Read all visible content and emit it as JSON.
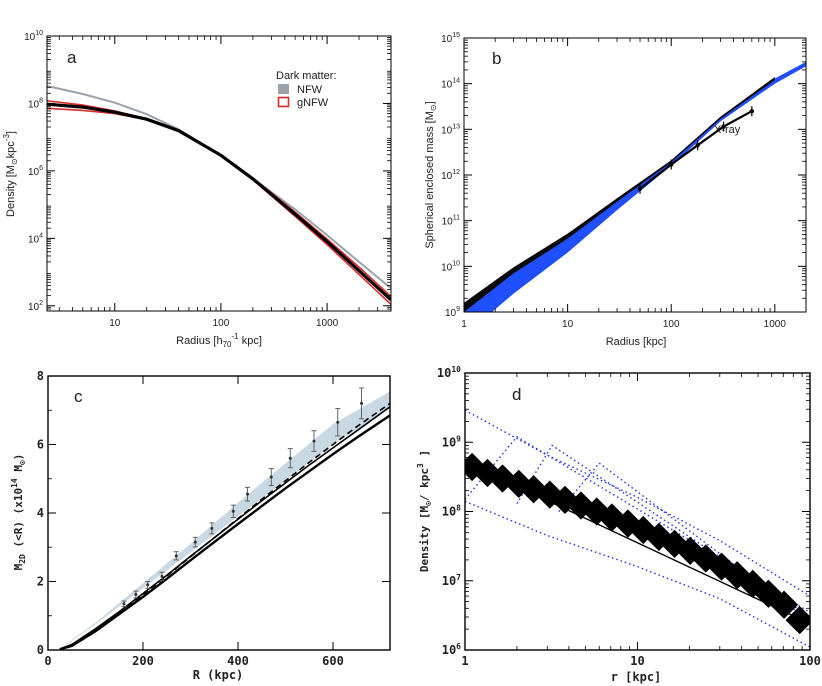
{
  "figure_title": "Four-panel figure: dark matter density and mass profiles",
  "chart_data": [
    {
      "panel": "a",
      "type": "line",
      "xscale": "log",
      "yscale": "log",
      "xlim": [
        2.3,
        4000
      ],
      "ylim": [
        70,
        10000000000
      ],
      "xlabel_main": "Radius [h",
      "xlabel_sub": "70",
      "xlabel_sup": "-1",
      "xlabel_tail": " kpc]",
      "ylabel_main": "Density [M",
      "ylabel_sub": "⊙",
      "ylabel_mid": "kpc",
      "ylabel_sup": "-3",
      "ylabel_tail": "]",
      "xticks": [
        {
          "v": 10,
          "label": "10"
        },
        {
          "v": 100,
          "label": "100"
        },
        {
          "v": 1000,
          "label": "1000"
        }
      ],
      "yticks": [
        {
          "v": 100,
          "b": "10",
          "e": "2"
        },
        {
          "v": 10000,
          "b": "10",
          "e": "4"
        },
        {
          "v": 1000000,
          "b": "10",
          "e": "6"
        },
        {
          "v": 100000000,
          "b": "10",
          "e": "8"
        },
        {
          "v": 10000000000,
          "b": "10",
          "e": "10"
        }
      ],
      "legend_title": "Dark matter:",
      "series": [
        {
          "name": "NFW",
          "color": "#9aa3ab",
          "x": [
            2.3,
            5,
            10,
            20,
            40,
            100,
            200,
            500,
            1000,
            2000,
            4000
          ],
          "y": [
            330000000,
            190000000,
            105000000,
            48000000,
            17000000,
            2800000,
            600000,
            72000,
            12500,
            2000,
            330
          ]
        },
        {
          "name": "gNFW",
          "color": "#dd2b2b",
          "x": [
            2.3,
            5,
            10,
            20,
            40,
            100,
            200,
            500,
            1000,
            2000,
            4000
          ],
          "y": [
            72000000,
            62000000,
            50000000,
            33000000,
            15000000,
            2800000,
            540000,
            45000,
            6500,
            850,
            110
          ]
        },
        {
          "name": "",
          "color": "#dd2b2b",
          "x": [
            2.3,
            5,
            10,
            20,
            40,
            100,
            200,
            500,
            1000,
            2000,
            4000
          ],
          "y": [
            120000000,
            90000000,
            60000000,
            35000000,
            16000000,
            3000000,
            620000,
            60000,
            9500,
            1400,
            190
          ]
        },
        {
          "name": "",
          "color": "#000000",
          "x": [
            2.3,
            5,
            10,
            20,
            40,
            100,
            200,
            500,
            1000,
            2000,
            4000
          ],
          "y": [
            95000000,
            78000000,
            55000000,
            34000000,
            15500000,
            2900000,
            580000,
            52000,
            8000,
            1100,
            150
          ]
        }
      ]
    },
    {
      "panel": "b",
      "type": "area",
      "xscale": "log",
      "yscale": "log",
      "xlim": [
        1,
        2000
      ],
      "ylim": [
        1000000000,
        1000000000000000
      ],
      "xlabel": "Radius [kpc]",
      "ylabel_main": "Spherical enclosed mass [M",
      "ylabel_sub": "⊙",
      "ylabel_tail": "]",
      "xticks": [
        {
          "v": 1,
          "label": "1"
        },
        {
          "v": 10,
          "label": "10"
        },
        {
          "v": 100,
          "label": "100"
        },
        {
          "v": 1000,
          "label": "1000"
        }
      ],
      "yticks": [
        {
          "v": 1000000000,
          "b": "10",
          "e": "9"
        },
        {
          "v": 10000000000,
          "b": "10",
          "e": "10"
        },
        {
          "v": 100000000000,
          "b": "10",
          "e": "11"
        },
        {
          "v": 1000000000000,
          "b": "10",
          "e": "12"
        },
        {
          "v": 10000000000000,
          "b": "10",
          "e": "13"
        },
        {
          "v": 100000000000000,
          "b": "10",
          "e": "14"
        },
        {
          "v": 1000000000000000,
          "b": "10",
          "e": "15"
        }
      ],
      "annotation": "X-ray",
      "blue_band": {
        "x": [
          1,
          3,
          10,
          30,
          100,
          300,
          1000,
          2000
        ],
        "lower": [
          300000000,
          2500000000,
          20000000000,
          170000000000,
          1600000000000,
          15000000000000,
          100000000000000,
          240000000000000
        ],
        "upper": [
          1200000000,
          7500000000,
          40000000000,
          280000000000,
          2000000000000,
          18000000000000,
          130000000000000,
          300000000000000
        ]
      },
      "black_band": {
        "x": [
          1,
          3,
          10,
          30,
          100,
          300,
          1000
        ],
        "lower": [
          1000000000,
          7000000000,
          40000000000,
          260000000000,
          1900000000000,
          17000000000000,
          120000000000000
        ],
        "upper": [
          1600000000,
          9500000000,
          52000000000,
          310000000000,
          2100000000000,
          19000000000000,
          140000000000000
        ]
      },
      "xray_points": [
        {
          "x": 50,
          "y": 500000000000
        },
        {
          "x": 100,
          "y": 1700000000000
        },
        {
          "x": 180,
          "y": 4500000000000
        },
        {
          "x": 320,
          "y": 11500000000000
        },
        {
          "x": 600,
          "y": 25000000000000
        }
      ]
    },
    {
      "panel": "c",
      "type": "line",
      "xscale": "linear",
      "yscale": "linear",
      "xlim": [
        0,
        720
      ],
      "ylim": [
        0,
        8
      ],
      "xlabel": "R (kpc)",
      "ylabel_m": "M",
      "ylabel_sub": "2D",
      "ylabel_mid": " (<R) (x10",
      "ylabel_sup": "14",
      "ylabel_unit": " M",
      "ylabel_sub2": "⊙",
      "ylabel_tail": ")",
      "xticks": [
        {
          "v": 0,
          "label": "0"
        },
        {
          "v": 200,
          "label": "200"
        },
        {
          "v": 400,
          "label": "400"
        },
        {
          "v": 600,
          "label": "600"
        }
      ],
      "yticks": [
        {
          "v": 0,
          "label": "0"
        },
        {
          "v": 2,
          "label": "2"
        },
        {
          "v": 4,
          "label": "4"
        },
        {
          "v": 6,
          "label": "6"
        },
        {
          "v": 8,
          "label": "8"
        }
      ],
      "band": {
        "x": [
          25,
          100,
          200,
          300,
          400,
          500,
          600,
          720
        ],
        "lower": [
          0.02,
          0.75,
          1.8,
          2.85,
          3.9,
          4.95,
          6.0,
          7.05
        ],
        "upper": [
          0.04,
          0.8,
          1.95,
          3.1,
          4.3,
          5.45,
          6.6,
          7.55
        ]
      },
      "lines": [
        {
          "style": "solid",
          "x": [
            25,
            50,
            100,
            150,
            200,
            250,
            300,
            350,
            400,
            450,
            500,
            550,
            600,
            650,
            720
          ],
          "y": [
            0.02,
            0.12,
            0.55,
            1.05,
            1.55,
            2.08,
            2.62,
            3.15,
            3.68,
            4.2,
            4.72,
            5.22,
            5.72,
            6.2,
            6.85
          ]
        },
        {
          "style": "solid",
          "x": [
            25,
            50,
            100,
            150,
            200,
            250,
            300,
            350,
            400,
            450,
            500,
            550,
            600,
            650,
            720
          ],
          "y": [
            0.03,
            0.16,
            0.62,
            1.12,
            1.65,
            2.18,
            2.74,
            3.28,
            3.82,
            4.36,
            4.88,
            5.4,
            5.9,
            6.4,
            7.1
          ]
        },
        {
          "style": "dashed",
          "x": [
            25,
            50,
            100,
            150,
            200,
            250,
            300,
            350,
            400,
            450,
            500,
            550,
            600,
            650,
            720
          ],
          "y": [
            0.03,
            0.15,
            0.6,
            1.1,
            1.62,
            2.16,
            2.72,
            3.28,
            3.84,
            4.4,
            4.94,
            5.48,
            6.0,
            6.52,
            7.2
          ]
        }
      ],
      "points": [
        {
          "x": 160,
          "y": 1.35,
          "e": 0.08
        },
        {
          "x": 185,
          "y": 1.62,
          "e": 0.1
        },
        {
          "x": 210,
          "y": 1.9,
          "e": 0.1
        },
        {
          "x": 240,
          "y": 2.15,
          "e": 0.12
        },
        {
          "x": 270,
          "y": 2.75,
          "e": 0.12
        },
        {
          "x": 310,
          "y": 3.15,
          "e": 0.14
        },
        {
          "x": 345,
          "y": 3.55,
          "e": 0.16
        },
        {
          "x": 390,
          "y": 4.05,
          "e": 0.18
        },
        {
          "x": 420,
          "y": 4.55,
          "e": 0.2
        },
        {
          "x": 470,
          "y": 5.05,
          "e": 0.25
        },
        {
          "x": 510,
          "y": 5.6,
          "e": 0.28
        },
        {
          "x": 560,
          "y": 6.1,
          "e": 0.3
        },
        {
          "x": 610,
          "y": 6.65,
          "e": 0.4
        },
        {
          "x": 660,
          "y": 7.2,
          "e": 0.45
        }
      ]
    },
    {
      "panel": "d",
      "type": "scatter",
      "xscale": "log",
      "yscale": "log",
      "xlim": [
        1,
        100
      ],
      "ylim": [
        1000000,
        10000000000
      ],
      "xlabel": "r [kpc]",
      "ylabel_main": "Density [M",
      "ylabel_sub": "⊙",
      "ylabel_mid": "/ kpc",
      "ylabel_sup": "3",
      "ylabel_tail": " ]",
      "xticks": [
        {
          "v": 1,
          "label": "1"
        },
        {
          "v": 10,
          "label": "10"
        },
        {
          "v": 100,
          "label": "100"
        }
      ],
      "yticks": [
        {
          "v": 1000000,
          "b": "10",
          "e": "6"
        },
        {
          "v": 10000000,
          "b": "10",
          "e": "7"
        },
        {
          "v": 100000000,
          "b": "10",
          "e": "8"
        },
        {
          "v": 1000000000,
          "b": "10",
          "e": "9"
        },
        {
          "v": 10000000000,
          "b": "10",
          "e": "10"
        }
      ],
      "squares": [
        {
          "x": 1.1,
          "y": 440000000
        },
        {
          "x": 1.35,
          "y": 360000000
        },
        {
          "x": 1.65,
          "y": 300000000
        },
        {
          "x": 2.05,
          "y": 250000000
        },
        {
          "x": 2.5,
          "y": 210000000
        },
        {
          "x": 3.1,
          "y": 175000000
        },
        {
          "x": 3.8,
          "y": 147000000
        },
        {
          "x": 4.7,
          "y": 122000000
        },
        {
          "x": 5.8,
          "y": 100000000
        },
        {
          "x": 7.1,
          "y": 82000000
        },
        {
          "x": 8.8,
          "y": 67000000
        },
        {
          "x": 10.8,
          "y": 54000000
        },
        {
          "x": 13.3,
          "y": 43000000
        },
        {
          "x": 16.4,
          "y": 34000000
        },
        {
          "x": 20.2,
          "y": 27000000
        },
        {
          "x": 24.9,
          "y": 21000000
        },
        {
          "x": 30.7,
          "y": 16000000
        },
        {
          "x": 37.8,
          "y": 12000000
        },
        {
          "x": 46.6,
          "y": 9000000
        },
        {
          "x": 57.4,
          "y": 6500000
        },
        {
          "x": 70.7,
          "y": 4500000
        },
        {
          "x": 87.1,
          "y": 2700000
        }
      ],
      "fit_line": {
        "x": [
          1,
          100
        ],
        "y": [
          520000000,
          2400000
        ]
      },
      "dotted_envelopes": [
        {
          "x": [
            1,
            3,
            10,
            30,
            100
          ],
          "y": [
            2900000000,
            650000000,
            160000000,
            38000000,
            6000000
          ]
        },
        {
          "x": [
            1,
            3,
            10,
            30,
            100
          ],
          "y": [
            140000000,
            45000000,
            16000000,
            5500000,
            1100000
          ]
        },
        {
          "x": [
            1,
            2,
            100
          ],
          "y": [
            150000000,
            1200000000,
            3500000
          ]
        },
        {
          "x": [
            2,
            3.2,
            100
          ],
          "y": [
            130000000,
            900000000,
            3000000
          ]
        },
        {
          "x": [
            3.5,
            6,
            100
          ],
          "y": [
            100000000,
            500000000,
            2600000
          ]
        }
      ]
    }
  ]
}
